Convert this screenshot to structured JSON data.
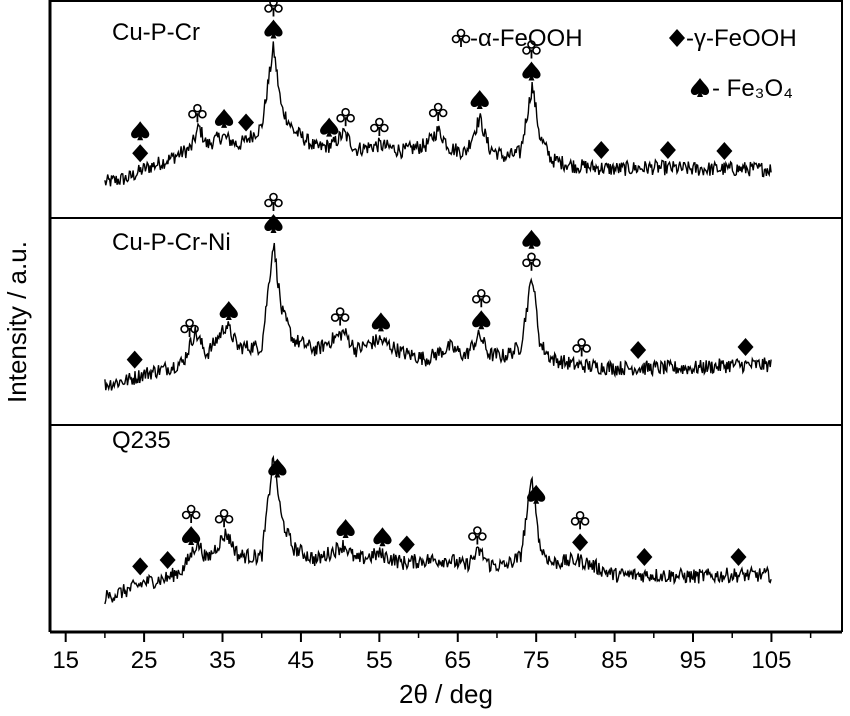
{
  "chart_data": {
    "type": "line",
    "xlabel": "2θ / deg",
    "ylabel": "Intensity / a.u.",
    "xlim": [
      13,
      114
    ],
    "x_ticks": [
      15,
      25,
      35,
      45,
      55,
      65,
      75,
      85,
      95,
      105
    ],
    "grid": false,
    "legend": {
      "position": "top-right",
      "entries": [
        {
          "marker": "club",
          "label": "-α-FeOOH"
        },
        {
          "marker": "diamond",
          "label": "-γ-FeOOH"
        },
        {
          "marker": "spade",
          "label": "- Fe₃O₄"
        }
      ]
    },
    "series": [
      {
        "name": "Cu-P-Cr",
        "x": [
          20,
          23,
          25,
          28,
          31,
          32,
          33,
          35,
          37,
          38,
          40,
          41.5,
          42.5,
          44,
          47,
          49,
          50.5,
          52,
          55,
          58,
          61,
          62.5,
          64,
          66,
          67.8,
          69,
          71,
          73,
          74.5,
          75.5,
          77,
          80,
          85,
          90,
          95,
          100,
          105
        ],
        "y": [
          0.05,
          0.08,
          0.14,
          0.2,
          0.28,
          0.42,
          0.3,
          0.36,
          0.3,
          0.33,
          0.42,
          0.95,
          0.55,
          0.4,
          0.28,
          0.3,
          0.38,
          0.27,
          0.3,
          0.26,
          0.3,
          0.4,
          0.28,
          0.25,
          0.48,
          0.28,
          0.22,
          0.25,
          0.7,
          0.35,
          0.2,
          0.16,
          0.14,
          0.15,
          0.14,
          0.14,
          0.14
        ],
        "markers": [
          {
            "x": 24.5,
            "symbols": [
              "diamond",
              "spade"
            ]
          },
          {
            "x": 31.8,
            "symbols": [
              "club"
            ]
          },
          {
            "x": 35.2,
            "symbols": [
              "spade"
            ]
          },
          {
            "x": 38.0,
            "symbols": [
              "diamond"
            ]
          },
          {
            "x": 41.5,
            "symbols": [
              "spade",
              "club"
            ]
          },
          {
            "x": 48.6,
            "symbols": [
              "spade"
            ]
          },
          {
            "x": 50.7,
            "symbols": [
              "club"
            ]
          },
          {
            "x": 55.0,
            "symbols": [
              "club"
            ]
          },
          {
            "x": 62.5,
            "symbols": [
              "club"
            ]
          },
          {
            "x": 67.8,
            "symbols": [
              "spade"
            ]
          },
          {
            "x": 74.4,
            "symbols": [
              "spade",
              "club"
            ]
          },
          {
            "x": 83.3,
            "symbols": [
              "diamond"
            ]
          },
          {
            "x": 91.8,
            "symbols": [
              "diamond"
            ]
          },
          {
            "x": 99.0,
            "symbols": [
              "diamond"
            ]
          }
        ]
      },
      {
        "name": "Cu-P-Cr-Ni",
        "x": [
          20,
          23,
          25,
          28,
          30,
          31.5,
          33,
          35.5,
          37,
          40,
          41.5,
          42.5,
          44,
          47,
          50.5,
          52,
          55,
          58,
          61,
          64,
          66,
          67.8,
          69,
          71,
          73,
          74.5,
          75.5,
          77,
          80,
          85,
          90,
          95,
          100,
          105
        ],
        "y": [
          0.05,
          0.08,
          0.12,
          0.16,
          0.2,
          0.4,
          0.25,
          0.45,
          0.3,
          0.3,
          1.0,
          0.55,
          0.35,
          0.28,
          0.4,
          0.28,
          0.35,
          0.26,
          0.22,
          0.3,
          0.24,
          0.38,
          0.25,
          0.24,
          0.3,
          0.78,
          0.32,
          0.22,
          0.18,
          0.16,
          0.16,
          0.16,
          0.18,
          0.18
        ],
        "markers": [
          {
            "x": 23.8,
            "symbols": [
              "diamond"
            ]
          },
          {
            "x": 30.8,
            "symbols": [
              "club"
            ]
          },
          {
            "x": 35.8,
            "symbols": [
              "spade"
            ]
          },
          {
            "x": 41.5,
            "symbols": [
              "spade",
              "club"
            ]
          },
          {
            "x": 50.0,
            "symbols": [
              "club"
            ]
          },
          {
            "x": 55.2,
            "symbols": [
              "spade"
            ]
          },
          {
            "x": 68.0,
            "symbols": [
              "spade",
              "club"
            ]
          },
          {
            "x": 74.4,
            "symbols": [
              "club",
              "spade"
            ]
          },
          {
            "x": 80.8,
            "symbols": [
              "club"
            ]
          },
          {
            "x": 88.0,
            "symbols": [
              "diamond"
            ]
          },
          {
            "x": 101.7,
            "symbols": [
              "diamond"
            ]
          }
        ]
      },
      {
        "name": "Q235",
        "x": [
          20,
          23,
          25,
          28,
          30,
          31.8,
          33,
          35.5,
          37,
          40,
          41.5,
          42.5,
          44,
          47,
          50.5,
          52,
          55,
          58,
          61,
          64,
          66,
          67.8,
          69,
          71,
          73,
          74.5,
          75.5,
          77,
          80.5,
          85,
          90,
          95,
          100,
          105
        ],
        "y": [
          0.05,
          0.1,
          0.15,
          0.18,
          0.24,
          0.42,
          0.3,
          0.48,
          0.33,
          0.32,
          1.0,
          0.58,
          0.38,
          0.3,
          0.4,
          0.3,
          0.34,
          0.28,
          0.3,
          0.3,
          0.26,
          0.36,
          0.27,
          0.26,
          0.32,
          0.85,
          0.38,
          0.28,
          0.3,
          0.2,
          0.2,
          0.19,
          0.2,
          0.2
        ],
        "markers": [
          {
            "x": 24.5,
            "symbols": [
              "diamond"
            ]
          },
          {
            "x": 28.0,
            "symbols": [
              "diamond"
            ]
          },
          {
            "x": 31.0,
            "symbols": [
              "spade",
              "club"
            ]
          },
          {
            "x": 35.2,
            "symbols": [
              "club"
            ]
          },
          {
            "x": 42.0,
            "symbols": [
              "spade"
            ]
          },
          {
            "x": 50.7,
            "symbols": [
              "spade"
            ]
          },
          {
            "x": 55.4,
            "symbols": [
              "spade"
            ]
          },
          {
            "x": 58.5,
            "symbols": [
              "diamond"
            ]
          },
          {
            "x": 67.5,
            "symbols": [
              "club"
            ]
          },
          {
            "x": 75.0,
            "symbols": [
              "spade"
            ]
          },
          {
            "x": 80.6,
            "symbols": [
              "diamond",
              "club"
            ]
          },
          {
            "x": 88.8,
            "symbols": [
              "diamond"
            ]
          },
          {
            "x": 100.8,
            "symbols": [
              "diamond"
            ]
          }
        ]
      }
    ]
  }
}
